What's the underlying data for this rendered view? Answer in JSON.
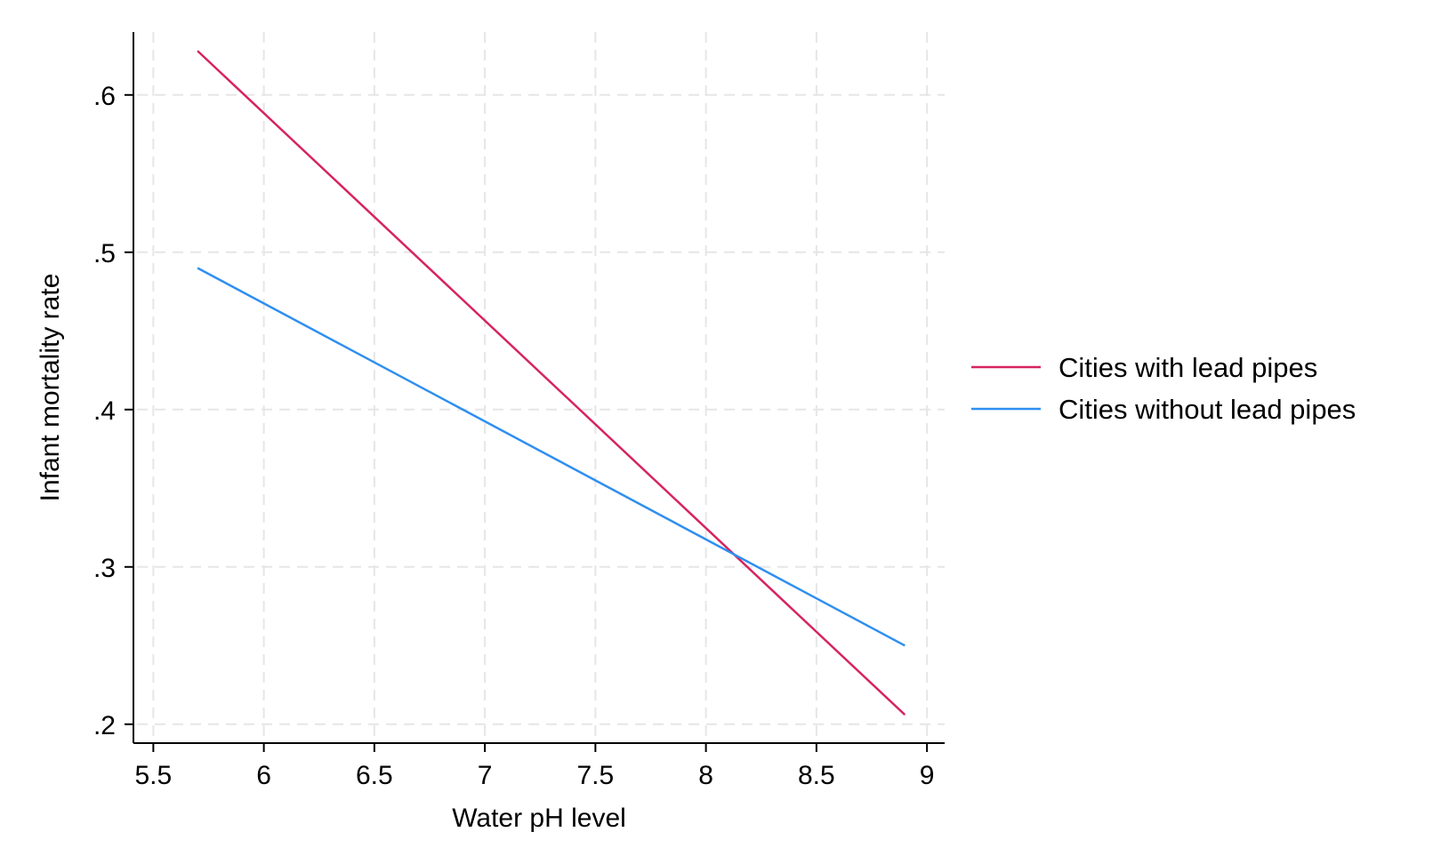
{
  "chart_data": {
    "type": "line",
    "title": "",
    "xlabel": "Water pH level",
    "ylabel": "Infant mortality rate",
    "xlim": [
      5.41,
      9.08
    ],
    "ylim": [
      0.188,
      0.64
    ],
    "xticks": [
      5.5,
      6,
      6.5,
      7,
      7.5,
      8,
      8.5,
      9
    ],
    "xtick_labels": [
      "5.5",
      "6",
      "6.5",
      "7",
      "7.5",
      "8",
      "8.5",
      "9"
    ],
    "yticks": [
      0.2,
      0.3,
      0.4,
      0.5,
      0.6
    ],
    "ytick_labels": [
      ".2",
      ".3",
      ".4",
      ".5",
      ".6"
    ],
    "grid": true,
    "legend_position": "right",
    "series": [
      {
        "name": "Cities with lead pipes",
        "color": "#d6245e",
        "x": [
          5.7,
          8.9
        ],
        "y": [
          0.628,
          0.206
        ]
      },
      {
        "name": "Cities without lead pipes",
        "color": "#2f8ff0",
        "x": [
          5.7,
          8.9
        ],
        "y": [
          0.49,
          0.25
        ]
      }
    ]
  }
}
